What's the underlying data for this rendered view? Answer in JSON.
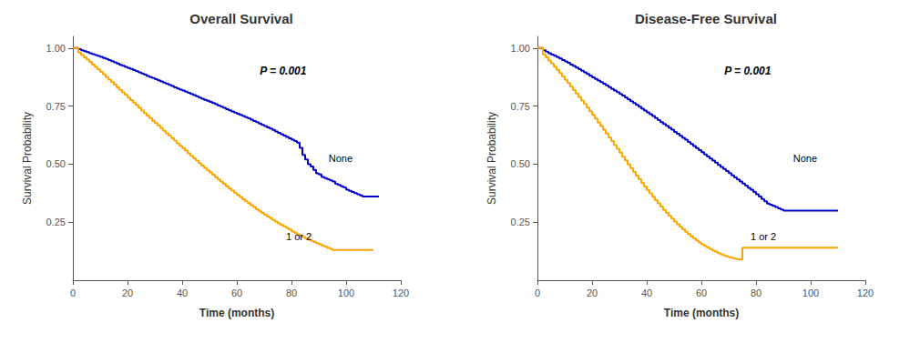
{
  "chart_data": [
    {
      "type": "step",
      "title": "Overall Survival",
      "xlabel": "Time (months)",
      "ylabel": "Survival Probability",
      "annotations": [
        "P = 0.001",
        "None",
        "1 or 2"
      ],
      "xlim": [
        0,
        120
      ],
      "ylim": [
        0,
        1.05
      ],
      "xticks": [
        0,
        20,
        40,
        60,
        80,
        100,
        120
      ],
      "yticks": [
        0.25,
        {
          "value": 0.5,
          "label": "0.50"
        },
        0.75,
        {
          "value": 1,
          "label": "1.00"
        }
      ],
      "grid": false,
      "series": [
        {
          "color": "#0000CC",
          "x": [
            0,
            2,
            3,
            4,
            5,
            6,
            7,
            8,
            9,
            10,
            11,
            12,
            13,
            14,
            15,
            16,
            17,
            18,
            19,
            20,
            21,
            22,
            23,
            24,
            25,
            26,
            27,
            28,
            29,
            30,
            31,
            32,
            33,
            34,
            35,
            36,
            37,
            38,
            39,
            40,
            41,
            42,
            43,
            44,
            45,
            46,
            47,
            48,
            49,
            50,
            51,
            52,
            53,
            54,
            55,
            56,
            57,
            58,
            59,
            60,
            61,
            62,
            63,
            64,
            65,
            66,
            67,
            68,
            69,
            70,
            71,
            72,
            73,
            74,
            75,
            76,
            77,
            78,
            79,
            80,
            81,
            82,
            83,
            84,
            85,
            86,
            87,
            88,
            89,
            90,
            91,
            92,
            93,
            94,
            95,
            96,
            97,
            98,
            99,
            100,
            101,
            102,
            103,
            104,
            105,
            106,
            107,
            108,
            109,
            110,
            111,
            112
          ],
          "values": [
            1.0,
            0.995,
            0.99,
            0.986,
            0.982,
            0.978,
            0.974,
            0.97,
            0.966,
            0.962,
            0.957,
            0.953,
            0.948,
            0.943,
            0.938,
            0.933,
            0.928,
            0.924,
            0.919,
            0.914,
            0.91,
            0.905,
            0.9,
            0.895,
            0.89,
            0.885,
            0.88,
            0.875,
            0.871,
            0.866,
            0.861,
            0.856,
            0.851,
            0.846,
            0.841,
            0.836,
            0.831,
            0.826,
            0.821,
            0.817,
            0.812,
            0.807,
            0.802,
            0.797,
            0.792,
            0.787,
            0.782,
            0.777,
            0.773,
            0.768,
            0.763,
            0.758,
            0.752,
            0.747,
            0.742,
            0.737,
            0.732,
            0.727,
            0.722,
            0.717,
            0.712,
            0.707,
            0.702,
            0.697,
            0.692,
            0.686,
            0.681,
            0.675,
            0.669,
            0.664,
            0.658,
            0.653,
            0.647,
            0.641,
            0.635,
            0.629,
            0.623,
            0.617,
            0.611,
            0.605,
            0.599,
            0.593,
            0.57,
            0.54,
            0.52,
            0.5,
            0.49,
            0.475,
            0.46,
            0.455,
            0.445,
            0.44,
            0.435,
            0.43,
            0.425,
            0.415,
            0.41,
            0.405,
            0.4,
            0.39,
            0.385,
            0.38,
            0.375,
            0.37,
            0.365,
            0.36,
            0.36,
            0.36,
            0.36,
            0.36,
            0.36,
            0.36
          ]
        },
        {
          "color": "#FFA500",
          "x": [
            0,
            2,
            3,
            4,
            5,
            6,
            7,
            8,
            9,
            10,
            11,
            12,
            13,
            14,
            15,
            16,
            17,
            18,
            19,
            20,
            21,
            22,
            23,
            24,
            25,
            26,
            27,
            28,
            29,
            30,
            31,
            32,
            33,
            34,
            35,
            36,
            37,
            38,
            39,
            40,
            41,
            42,
            43,
            44,
            45,
            46,
            47,
            48,
            49,
            50,
            51,
            52,
            53,
            54,
            55,
            56,
            57,
            58,
            59,
            60,
            61,
            62,
            63,
            64,
            65,
            66,
            67,
            68,
            69,
            70,
            71,
            72,
            73,
            74,
            75,
            76,
            77,
            78,
            79,
            80,
            81,
            82,
            83,
            84,
            85,
            86,
            87,
            88,
            89,
            90,
            91,
            92,
            93,
            94,
            95,
            96,
            97,
            98,
            99,
            100,
            101,
            102,
            103,
            104,
            105,
            106,
            107,
            108,
            109,
            110
          ],
          "values": [
            1.0,
            0.98,
            0.97,
            0.96,
            0.95,
            0.94,
            0.929,
            0.919,
            0.908,
            0.897,
            0.886,
            0.875,
            0.864,
            0.853,
            0.842,
            0.831,
            0.82,
            0.809,
            0.798,
            0.787,
            0.776,
            0.765,
            0.754,
            0.742,
            0.731,
            0.72,
            0.709,
            0.698,
            0.687,
            0.677,
            0.666,
            0.655,
            0.644,
            0.633,
            0.623,
            0.612,
            0.601,
            0.59,
            0.579,
            0.569,
            0.558,
            0.547,
            0.536,
            0.525,
            0.515,
            0.504,
            0.494,
            0.484,
            0.474,
            0.464,
            0.454,
            0.444,
            0.434,
            0.424,
            0.415,
            0.405,
            0.395,
            0.386,
            0.377,
            0.367,
            0.358,
            0.349,
            0.34,
            0.332,
            0.323,
            0.315,
            0.306,
            0.298,
            0.29,
            0.282,
            0.274,
            0.267,
            0.26,
            0.252,
            0.245,
            0.238,
            0.232,
            0.225,
            0.218,
            0.211,
            0.205,
            0.198,
            0.192,
            0.186,
            0.18,
            0.175,
            0.17,
            0.165,
            0.16,
            0.155,
            0.15,
            0.145,
            0.14,
            0.135,
            0.13,
            0.13,
            0.13,
            0.13,
            0.13,
            0.13,
            0.13,
            0.13,
            0.13,
            0.13,
            0.13,
            0.13,
            0.13,
            0.13,
            0.13,
            0.13
          ]
        }
      ]
    },
    {
      "type": "step",
      "title": "Disease-Free Survival",
      "xlabel": "Time (months)",
      "ylabel": "Survival Probability",
      "annotations": [
        "P = 0.001",
        "None",
        "1 or 2"
      ],
      "xlim": [
        0,
        120
      ],
      "ylim": [
        0,
        1.05
      ],
      "xticks": [
        0,
        20,
        40,
        60,
        80,
        100,
        120
      ],
      "yticks": [
        0.25,
        {
          "value": 0.5,
          "label": "0.50"
        },
        0.75,
        {
          "value": 1,
          "label": "1.00"
        }
      ],
      "grid": false,
      "series": [
        {
          "color": "#0000CC",
          "x": [
            0,
            2,
            3,
            4,
            5,
            6,
            7,
            8,
            9,
            10,
            11,
            12,
            13,
            14,
            15,
            16,
            17,
            18,
            19,
            20,
            21,
            22,
            23,
            24,
            25,
            26,
            27,
            28,
            29,
            30,
            31,
            32,
            33,
            34,
            35,
            36,
            37,
            38,
            39,
            40,
            41,
            42,
            43,
            44,
            45,
            46,
            47,
            48,
            49,
            50,
            51,
            52,
            53,
            54,
            55,
            56,
            57,
            58,
            59,
            60,
            61,
            62,
            63,
            64,
            65,
            66,
            67,
            68,
            69,
            70,
            71,
            72,
            73,
            74,
            75,
            76,
            77,
            78,
            79,
            80,
            81,
            82,
            83,
            84,
            85,
            86,
            87,
            88,
            89,
            90,
            91,
            92,
            93,
            94,
            95,
            96,
            97,
            98,
            99,
            100,
            101,
            102,
            103,
            104,
            105,
            106,
            107,
            108,
            109,
            110
          ],
          "values": [
            1.0,
            0.99,
            0.984,
            0.978,
            0.972,
            0.967,
            0.961,
            0.955,
            0.948,
            0.942,
            0.936,
            0.929,
            0.923,
            0.916,
            0.909,
            0.902,
            0.895,
            0.888,
            0.881,
            0.874,
            0.867,
            0.86,
            0.853,
            0.846,
            0.839,
            0.832,
            0.824,
            0.817,
            0.81,
            0.802,
            0.795,
            0.787,
            0.779,
            0.771,
            0.763,
            0.755,
            0.747,
            0.739,
            0.731,
            0.723,
            0.715,
            0.707,
            0.698,
            0.69,
            0.681,
            0.673,
            0.665,
            0.656,
            0.648,
            0.639,
            0.631,
            0.622,
            0.613,
            0.605,
            0.596,
            0.587,
            0.578,
            0.569,
            0.56,
            0.551,
            0.542,
            0.533,
            0.524,
            0.515,
            0.506,
            0.497,
            0.488,
            0.479,
            0.47,
            0.461,
            0.452,
            0.443,
            0.434,
            0.425,
            0.416,
            0.407,
            0.398,
            0.39,
            0.38,
            0.37,
            0.36,
            0.35,
            0.34,
            0.33,
            0.325,
            0.32,
            0.315,
            0.31,
            0.305,
            0.3,
            0.3,
            0.3,
            0.3,
            0.3,
            0.3,
            0.3,
            0.3,
            0.3,
            0.3,
            0.3,
            0.3,
            0.3,
            0.3,
            0.3,
            0.3,
            0.3,
            0.3,
            0.3,
            0.3,
            0.3
          ]
        },
        {
          "color": "#FFA500",
          "x": [
            0,
            2,
            3,
            4,
            5,
            6,
            7,
            8,
            9,
            10,
            11,
            12,
            13,
            14,
            15,
            16,
            17,
            18,
            19,
            20,
            21,
            22,
            23,
            24,
            25,
            26,
            27,
            28,
            29,
            30,
            31,
            32,
            33,
            34,
            35,
            36,
            37,
            38,
            39,
            40,
            41,
            42,
            43,
            44,
            45,
            46,
            47,
            48,
            49,
            50,
            51,
            52,
            53,
            54,
            55,
            56,
            57,
            58,
            59,
            60,
            61,
            62,
            63,
            64,
            65,
            66,
            67,
            68,
            69,
            70,
            71,
            72,
            73,
            74,
            75,
            76,
            77,
            78,
            79,
            80,
            81,
            82,
            83,
            84,
            85,
            86,
            87,
            88,
            89,
            90,
            91,
            92,
            93,
            94,
            95,
            96,
            97,
            98,
            99,
            100,
            101,
            102,
            103,
            104,
            105,
            106,
            107,
            108,
            109,
            110
          ],
          "values": [
            1.0,
            0.973,
            0.96,
            0.946,
            0.933,
            0.92,
            0.906,
            0.892,
            0.878,
            0.863,
            0.849,
            0.834,
            0.819,
            0.804,
            0.789,
            0.774,
            0.759,
            0.743,
            0.728,
            0.712,
            0.696,
            0.68,
            0.664,
            0.648,
            0.632,
            0.615,
            0.599,
            0.582,
            0.566,
            0.549,
            0.532,
            0.516,
            0.499,
            0.483,
            0.467,
            0.451,
            0.435,
            0.419,
            0.404,
            0.389,
            0.374,
            0.359,
            0.345,
            0.331,
            0.317,
            0.303,
            0.29,
            0.277,
            0.265,
            0.253,
            0.241,
            0.23,
            0.219,
            0.209,
            0.199,
            0.189,
            0.18,
            0.171,
            0.163,
            0.155,
            0.148,
            0.141,
            0.134,
            0.128,
            0.122,
            0.117,
            0.112,
            0.107,
            0.103,
            0.099,
            0.096,
            0.093,
            0.09,
            0.088,
            0.14,
            0.14,
            0.14,
            0.14,
            0.14,
            0.14,
            0.14,
            0.14,
            0.14,
            0.14,
            0.14,
            0.14,
            0.14,
            0.14,
            0.14,
            0.14,
            0.14,
            0.14,
            0.14,
            0.14,
            0.14,
            0.14,
            0.14,
            0.14,
            0.14,
            0.14,
            0.14,
            0.14,
            0.14,
            0.14,
            0.14,
            0.14,
            0.14,
            0.14,
            0.14,
            0.14
          ]
        }
      ]
    }
  ]
}
